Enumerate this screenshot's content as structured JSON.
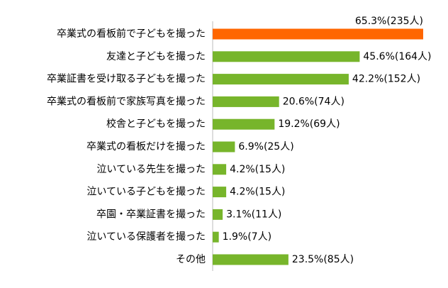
{
  "chart_data": {
    "type": "barh",
    "categories": [
      "卒業式の看板前で子どもを撮った",
      "友達と子どもを撮った",
      "卒業証書を受け取る子どもを撮った",
      "卒業式の看板前で家族写真を撮った",
      "校舎と子どもを撮った",
      "卒業式の看板だけを撮った",
      "泣いている先生を撮った",
      "泣いている子どもを撮った",
      "卒園・卒業証書を撮った",
      "泣いている保護者を撮った",
      "その他"
    ],
    "values": [
      65.3,
      45.6,
      42.2,
      20.6,
      19.2,
      6.9,
      4.2,
      4.2,
      3.1,
      1.9,
      23.5
    ],
    "value_labels": [
      "65.3%(235人)",
      "45.6%(164人)",
      "42.2%(152人)",
      "20.6%(74人)",
      "19.2%(69人)",
      "6.9%(25人)",
      "4.2%(15人)",
      "4.2%(15人)",
      "3.1%(11人)",
      "1.9%(7人)",
      "23.5%(85人)"
    ],
    "colors": [
      "#ff6600",
      "#77b52b",
      "#77b52b",
      "#77b52b",
      "#77b52b",
      "#77b52b",
      "#77b52b",
      "#77b52b",
      "#77b52b",
      "#77b52b",
      "#77b52b"
    ]
  }
}
